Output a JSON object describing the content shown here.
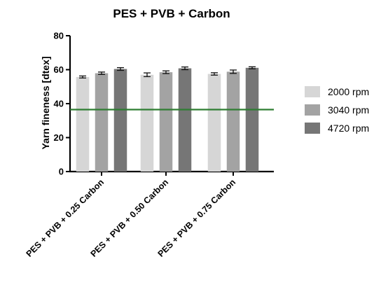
{
  "chart_data": {
    "type": "bar",
    "title": "PES + PVB + Carbon",
    "xlabel": "",
    "ylabel": "Yarn fineness [dtex]",
    "ylim": [
      0,
      80
    ],
    "yticks": [
      0,
      20,
      40,
      60,
      80
    ],
    "categories": [
      "PES + PVB + 0.25 Carbon",
      "PES + PVB + 0.50 Carbon",
      "PES + PVB + 0.75 Carbon"
    ],
    "series": [
      {
        "name": "2000 rpm",
        "color": "#d6d6d6",
        "values": [
          55.7,
          57.0,
          57.5
        ],
        "errors": [
          0.6,
          1.1,
          0.7
        ]
      },
      {
        "name": "3040 rpm",
        "color": "#a3a3a3",
        "values": [
          57.9,
          58.5,
          58.8
        ],
        "errors": [
          0.7,
          0.8,
          1.0
        ]
      },
      {
        "name": "4720 rpm",
        "color": "#767676",
        "values": [
          60.4,
          60.8,
          61.1
        ],
        "errors": [
          0.8,
          0.8,
          0.6
        ]
      }
    ],
    "reference_line": {
      "value": 36.5,
      "color": "#2e7d32"
    },
    "grid": false,
    "legend_position": "right"
  }
}
